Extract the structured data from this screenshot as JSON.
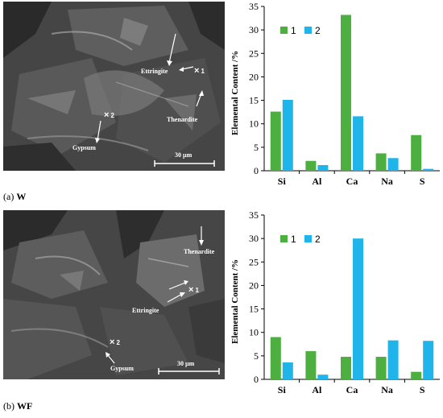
{
  "panels": [
    {
      "caption_prefix": "(a)",
      "caption_sample": "W",
      "image": {
        "labels": [
          "Ettringite",
          "Thenardite",
          "Gypsum"
        ],
        "point_markers": [
          "1",
          "2"
        ],
        "marker_glyph": "×",
        "scale_bar": "30 µm"
      },
      "chart_data": {
        "type": "bar",
        "categories": [
          "Si",
          "Al",
          "Ca",
          "Na",
          "S"
        ],
        "series": [
          {
            "name": "1",
            "color": "#4caf3f",
            "values": [
              12.6,
              2.1,
              33.2,
              3.7,
              7.6
            ]
          },
          {
            "name": "2",
            "color": "#1fb5ea",
            "values": [
              15.1,
              1.2,
              11.6,
              2.7,
              0.4
            ]
          }
        ],
        "ylabel": "Elemental Content /%",
        "ylim": [
          0,
          35
        ],
        "yticks": [
          0,
          5,
          10,
          15,
          20,
          25,
          30,
          35
        ],
        "legend": "top-left",
        "grid": false
      }
    },
    {
      "caption_prefix": "(b)",
      "caption_sample": "WF",
      "image": {
        "labels": [
          "Thenardite",
          "Ettringite",
          "Gypsum"
        ],
        "point_markers": [
          "1",
          "2"
        ],
        "marker_glyph": "×",
        "scale_bar": "30 µm"
      },
      "chart_data": {
        "type": "bar",
        "categories": [
          "Si",
          "Al",
          "Ca",
          "Na",
          "S"
        ],
        "series": [
          {
            "name": "1",
            "color": "#4caf3f",
            "values": [
              9.0,
              6.0,
              4.8,
              4.8,
              1.6
            ]
          },
          {
            "name": "2",
            "color": "#1fb5ea",
            "values": [
              3.6,
              1.0,
              30.0,
              8.3,
              8.2
            ]
          }
        ],
        "ylabel": "Elemental Content /%",
        "ylim": [
          0,
          35
        ],
        "yticks": [
          0,
          5,
          10,
          15,
          20,
          25,
          30,
          35
        ],
        "legend": "top-left",
        "grid": false
      }
    }
  ]
}
